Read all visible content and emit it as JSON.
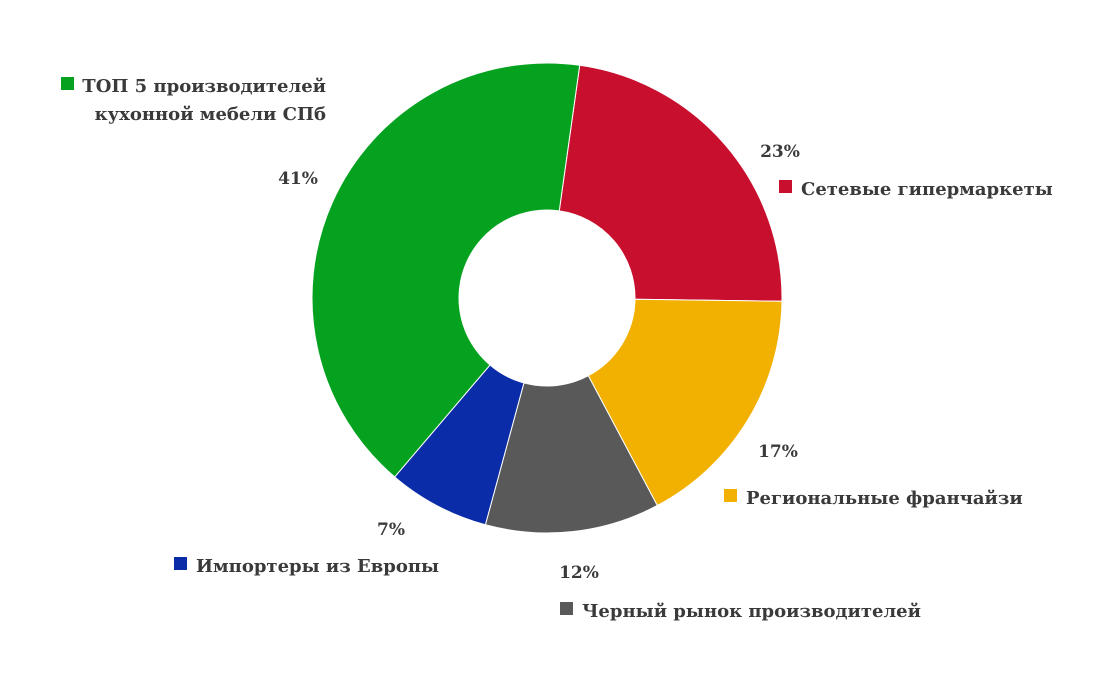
{
  "chart_data": {
    "type": "pie",
    "style": "donut",
    "slices": [
      {
        "label_lines": [
          "Сетевые гипермаркеты"
        ],
        "value": 23,
        "value_label": "23%",
        "color": "#c8102e"
      },
      {
        "label_lines": [
          "Региональные франчайзи"
        ],
        "value": 17,
        "value_label": "17%",
        "color": "#f2b000"
      },
      {
        "label_lines": [
          "Черный рынок производителей"
        ],
        "value": 12,
        "value_label": "12%",
        "color": "#595959"
      },
      {
        "label_lines": [
          "Импортеры из Европы"
        ],
        "value": 7,
        "value_label": "7%",
        "color": "#0a2ca8"
      },
      {
        "label_lines": [
          "ТОП 5 производителей",
          "кухонной мебели СПб"
        ],
        "value": 41,
        "value_label": "41%",
        "color": "#04a21e"
      }
    ]
  }
}
